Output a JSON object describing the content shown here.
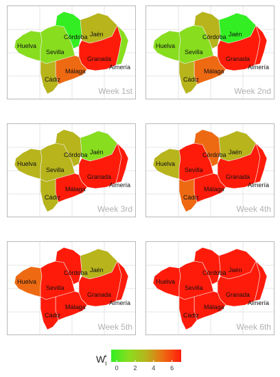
{
  "provinces": [
    "Huelva",
    "Sevilla",
    "Córdoba",
    "Jaén",
    "Granada",
    "Almería",
    "Málaga",
    "Cádiz"
  ],
  "colors": {
    "low": "#33ee22",
    "lime": "#88dd1e",
    "olive": "#b7b41c",
    "orange": "#ee6a12",
    "red": "#ff1b0a"
  },
  "weeks": [
    {
      "label": "Week 1st",
      "values": {
        "Huelva": "lime",
        "Sevilla": "lime",
        "Córdoba": "low",
        "Jaén": "olive",
        "Granada": "red",
        "Almería": "lime",
        "Málaga": "orange",
        "Cádiz": "olive"
      }
    },
    {
      "label": "Week 2nd",
      "values": {
        "Huelva": "lime",
        "Sevilla": "lime",
        "Córdoba": "olive",
        "Jaén": "low",
        "Granada": "red",
        "Almería": "red",
        "Málaga": "orange",
        "Cádiz": "olive"
      }
    },
    {
      "label": "Week 3rd",
      "values": {
        "Huelva": "olive",
        "Sevilla": "olive",
        "Córdoba": "olive",
        "Jaén": "lime",
        "Granada": "red",
        "Almería": "red",
        "Málaga": "red",
        "Cádiz": "olive"
      }
    },
    {
      "label": "Week 4th",
      "values": {
        "Huelva": "olive",
        "Sevilla": "red",
        "Córdoba": "orange",
        "Jaén": "olive",
        "Granada": "red",
        "Almería": "red",
        "Málaga": "red",
        "Cádiz": "orange"
      }
    },
    {
      "label": "Week 5th",
      "values": {
        "Huelva": "orange",
        "Sevilla": "red",
        "Córdoba": "red",
        "Jaén": "olive",
        "Granada": "red",
        "Almería": "red",
        "Málaga": "red",
        "Cádiz": "red"
      }
    },
    {
      "label": "Week 6th",
      "values": {
        "Huelva": "red",
        "Sevilla": "red",
        "Córdoba": "red",
        "Jaén": "red",
        "Granada": "red",
        "Almería": "red",
        "Málaga": "red",
        "Cádiz": "red"
      }
    }
  ],
  "legend": {
    "title": "Wt+",
    "title_main": "W",
    "title_sub": "t",
    "title_sup": "+",
    "ticks": [
      "0",
      "2",
      "4",
      "6"
    ],
    "tick_values": [
      0,
      2,
      4,
      6
    ],
    "range": [
      -0.6,
      7
    ],
    "gradient": [
      "#33ee22",
      "#88dd1e",
      "#b7b41c",
      "#ee6a12",
      "#ff1b0a"
    ]
  }
}
